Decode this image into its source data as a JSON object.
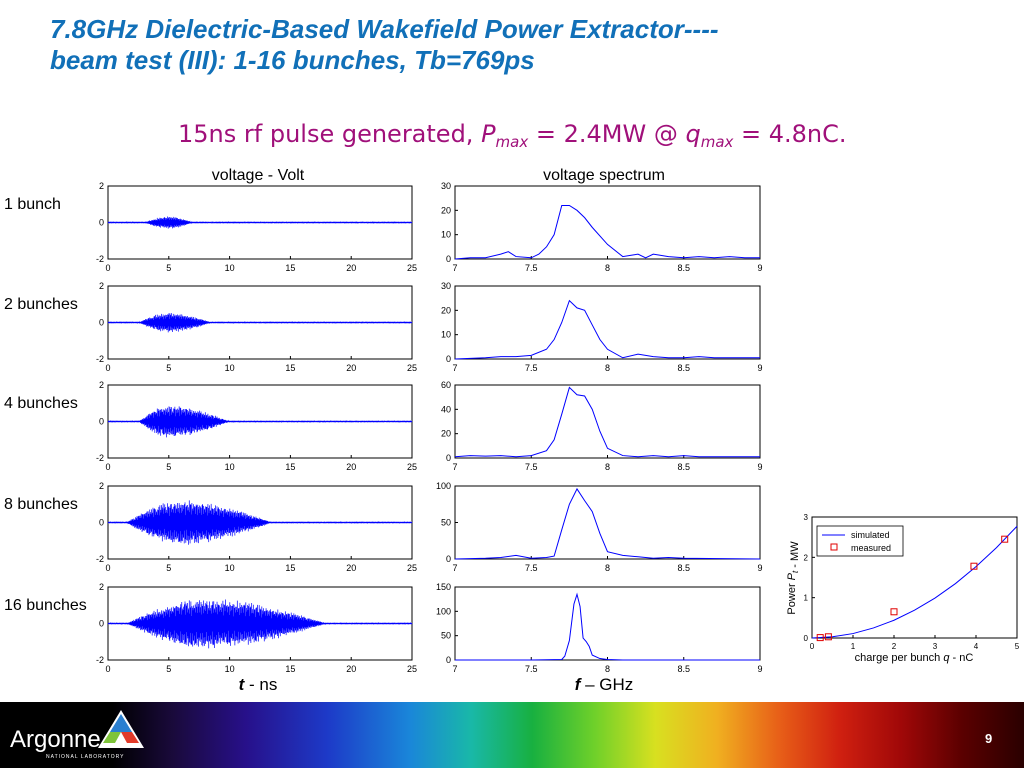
{
  "slide": {
    "title_line1": "7.8GHz Dielectric-Based Wakefield Power Extractor----",
    "title_line2": "beam test (III): 1-16 bunches, Tb=769ps",
    "subtitle": {
      "pre": "15ns rf pulse generated, ",
      "p_sym": "P",
      "p_sub": "max",
      "mid": " = 2.4MW @ ",
      "q_sym": "q",
      "q_sub": "max",
      "post": " = 4.8nC."
    },
    "footer": {
      "logo": "Argonne",
      "logo_sub": "NATIONAL LABORATORY",
      "page": "9",
      "accent": "#1170b8"
    }
  },
  "chart_data": [
    {
      "type": "line",
      "panel_group": "voltage",
      "title": "voltage - Volt",
      "row_labels": [
        "1 bunch",
        "2 bunches",
        "4 bunches",
        "8 bunches",
        "16 bunches"
      ],
      "xlabel_var": "t",
      "xlabel_unit": " - ns",
      "xlim": [
        0,
        25
      ],
      "ylim": [
        -2,
        2
      ],
      "xticks": [
        0,
        5,
        10,
        15,
        20,
        25
      ],
      "yticks": [
        -2,
        0,
        2
      ],
      "series": [
        {
          "envelope": {
            "start": 3.0,
            "peak": 5.0,
            "end": 7.0,
            "peak_amp": 0.35
          }
        },
        {
          "envelope": {
            "start": 2.5,
            "peak": 5.0,
            "end": 8.5,
            "peak_amp": 0.55
          }
        },
        {
          "envelope": {
            "start": 2.5,
            "peak": 5.0,
            "end": 10.0,
            "peak_amp": 0.9
          }
        },
        {
          "envelope": {
            "start": 1.5,
            "peak": 6.0,
            "end": 13.5,
            "peak_amp": 1.25
          }
        },
        {
          "envelope": {
            "start": 1.5,
            "peak": 8.0,
            "end": 18.0,
            "peak_amp": 1.4
          }
        }
      ],
      "color": "#0000ff"
    },
    {
      "type": "line",
      "panel_group": "spectrum",
      "title": "voltage spectrum",
      "xlabel_var": "f",
      "xlabel_unit": " – GHz",
      "xlim": [
        7,
        9
      ],
      "xticks": [
        7,
        7.5,
        8,
        8.5,
        9
      ],
      "color": "#0000ff",
      "series": [
        {
          "ylim": [
            0,
            30
          ],
          "yticks": [
            0,
            10,
            20,
            30
          ],
          "x": [
            7.0,
            7.1,
            7.2,
            7.3,
            7.35,
            7.4,
            7.5,
            7.55,
            7.6,
            7.65,
            7.7,
            7.75,
            7.8,
            7.85,
            7.9,
            8.0,
            8.1,
            8.2,
            8.25,
            8.3,
            8.4,
            8.5,
            8.6,
            8.7,
            8.8,
            8.9,
            9.0
          ],
          "y": [
            0,
            0.5,
            0.5,
            2,
            3,
            1,
            0.5,
            2,
            5,
            10,
            22,
            22,
            20,
            17,
            13,
            6,
            1,
            2,
            0.5,
            2,
            1,
            0.5,
            1,
            0.5,
            1,
            0.5,
            0.5
          ]
        },
        {
          "ylim": [
            0,
            30
          ],
          "yticks": [
            0,
            10,
            20,
            30
          ],
          "x": [
            7.0,
            7.2,
            7.3,
            7.4,
            7.5,
            7.6,
            7.65,
            7.7,
            7.75,
            7.8,
            7.85,
            7.9,
            7.95,
            8.0,
            8.1,
            8.2,
            8.3,
            8.4,
            8.5,
            8.6,
            8.7,
            8.8,
            9.0
          ],
          "y": [
            0,
            0.5,
            1,
            1,
            1.5,
            4,
            8,
            15,
            24,
            21,
            20,
            14,
            8,
            4,
            0.5,
            2,
            1,
            0.5,
            0.5,
            1,
            0.5,
            0.5,
            0.5
          ]
        },
        {
          "ylim": [
            0,
            60
          ],
          "yticks": [
            0,
            20,
            40,
            60
          ],
          "x": [
            7.0,
            7.1,
            7.2,
            7.3,
            7.4,
            7.5,
            7.6,
            7.65,
            7.7,
            7.75,
            7.8,
            7.85,
            7.9,
            7.95,
            8.0,
            8.1,
            8.2,
            8.3,
            8.4,
            8.5,
            8.6,
            9.0
          ],
          "y": [
            1,
            2,
            1.5,
            2,
            1,
            2,
            6,
            15,
            36,
            58,
            52,
            51,
            40,
            22,
            8,
            2,
            1,
            2,
            1,
            2,
            1,
            1
          ]
        },
        {
          "ylim": [
            0,
            100
          ],
          "yticks": [
            0,
            50,
            100
          ],
          "x": [
            7.0,
            7.2,
            7.3,
            7.4,
            7.5,
            7.6,
            7.65,
            7.7,
            7.75,
            7.8,
            7.85,
            7.9,
            7.95,
            8.0,
            8.1,
            8.2,
            8.3,
            8.4,
            8.5,
            9.0
          ],
          "y": [
            0,
            1,
            2,
            5,
            1,
            2,
            4,
            40,
            75,
            96,
            80,
            65,
            35,
            10,
            5,
            3,
            1,
            2,
            1,
            0
          ]
        },
        {
          "ylim": [
            0,
            150
          ],
          "yticks": [
            0,
            50,
            100,
            150
          ],
          "x": [
            7.0,
            7.5,
            7.6,
            7.7,
            7.72,
            7.75,
            7.78,
            7.8,
            7.82,
            7.84,
            7.86,
            7.88,
            7.9,
            7.95,
            8.0,
            8.1,
            8.5,
            9.0
          ],
          "y": [
            0,
            0,
            0.5,
            1,
            8,
            40,
            115,
            135,
            110,
            45,
            38,
            28,
            10,
            3,
            1,
            0,
            0,
            0
          ]
        }
      ]
    },
    {
      "type": "line",
      "panel_group": "power",
      "xlabel": "charge per bunch ",
      "xlabel_var": "q",
      "xlabel_unit": " - nC",
      "ylabel_pre": "Power ",
      "ylabel_var": "P",
      "ylabel_sub": "t",
      "ylabel_post": " - MW",
      "xlim": [
        0,
        5
      ],
      "ylim": [
        0,
        3
      ],
      "xticks": [
        0,
        1,
        2,
        3,
        4,
        5
      ],
      "yticks": [
        0,
        1,
        2,
        3
      ],
      "legend": "top-left",
      "series": [
        {
          "name": "simulated",
          "color": "#0000ff",
          "style": "line",
          "x": [
            0,
            0.5,
            1,
            1.5,
            2,
            2.5,
            3,
            3.5,
            4,
            4.5,
            5
          ],
          "y": [
            0,
            0.03,
            0.11,
            0.25,
            0.44,
            0.69,
            0.99,
            1.35,
            1.77,
            2.24,
            2.77
          ]
        },
        {
          "name": "measured",
          "color": "#e00000",
          "style": "square",
          "x": [
            0.2,
            0.4,
            2.0,
            3.95,
            4.7
          ],
          "y": [
            0.01,
            0.03,
            0.65,
            1.78,
            2.45
          ]
        }
      ]
    }
  ]
}
